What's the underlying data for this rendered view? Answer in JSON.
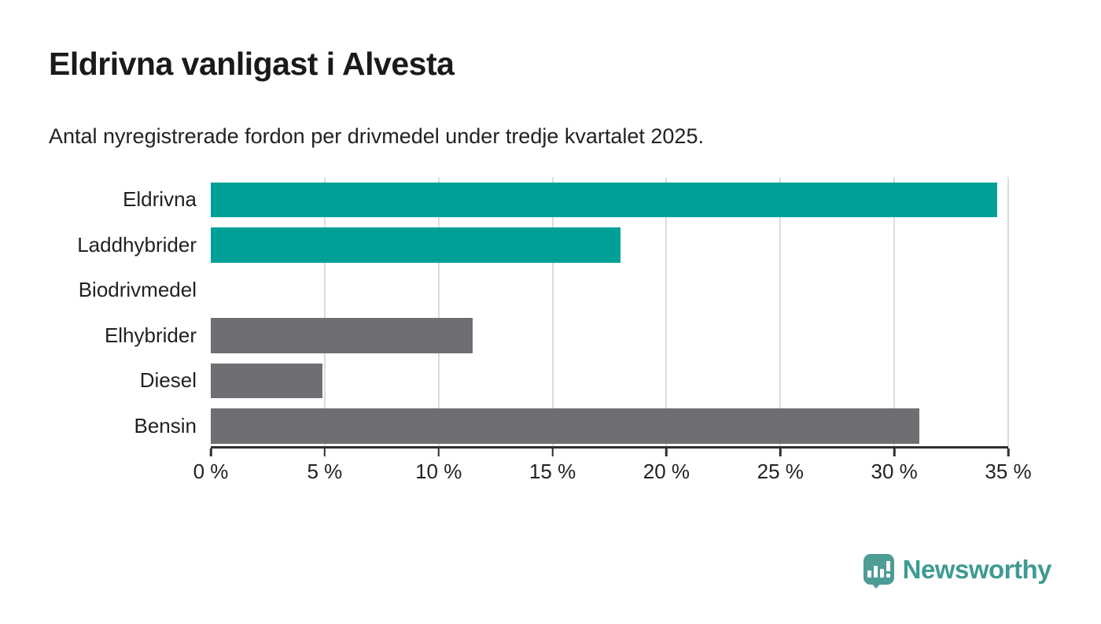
{
  "page": {
    "title": "Eldrivna vanligast i Alvesta",
    "subtitle": "Antal nyregistrerade fordon per drivmedel under tredje kvartalet 2025."
  },
  "branding": {
    "wordmark": "Newsworthy",
    "logo_icon": "bar-chart-speech-bubble",
    "logo_color": "#4d9c96",
    "wordmark_color": "#3f9a93"
  },
  "colors": {
    "highlight_teal": "#00a099",
    "neutral_gray": "#6e6e73",
    "gridline": "#dcdcdc",
    "axis": "#2f2f2f",
    "text_dark": "#1a1a1a"
  },
  "chart_data": {
    "type": "bar",
    "orientation": "horizontal",
    "title": "Eldrivna vanligast i Alvesta",
    "subtitle": "Antal nyregistrerade fordon per drivmedel under tredje kvartalet 2025.",
    "categories": [
      "Eldrivna",
      "Laddhybrider",
      "Biodrivmedel",
      "Elhybrider",
      "Diesel",
      "Bensin"
    ],
    "values": [
      34.5,
      18.0,
      0,
      11.5,
      4.9,
      31.1
    ],
    "bar_colors": [
      "#00a099",
      "#00a099",
      "#6e6e73",
      "#6e6e73",
      "#6e6e73",
      "#6e6e73"
    ],
    "unit": "percent",
    "xlabel": "",
    "ylabel": "",
    "xlim": [
      0,
      35
    ],
    "x_ticks": [
      0,
      5,
      10,
      15,
      20,
      25,
      30,
      35
    ],
    "x_tick_labels": [
      "0 %",
      "5 %",
      "10 %",
      "15 %",
      "20 %",
      "25 %",
      "30 %",
      "35 %"
    ],
    "grid": "vertical-only",
    "legend": "none"
  }
}
